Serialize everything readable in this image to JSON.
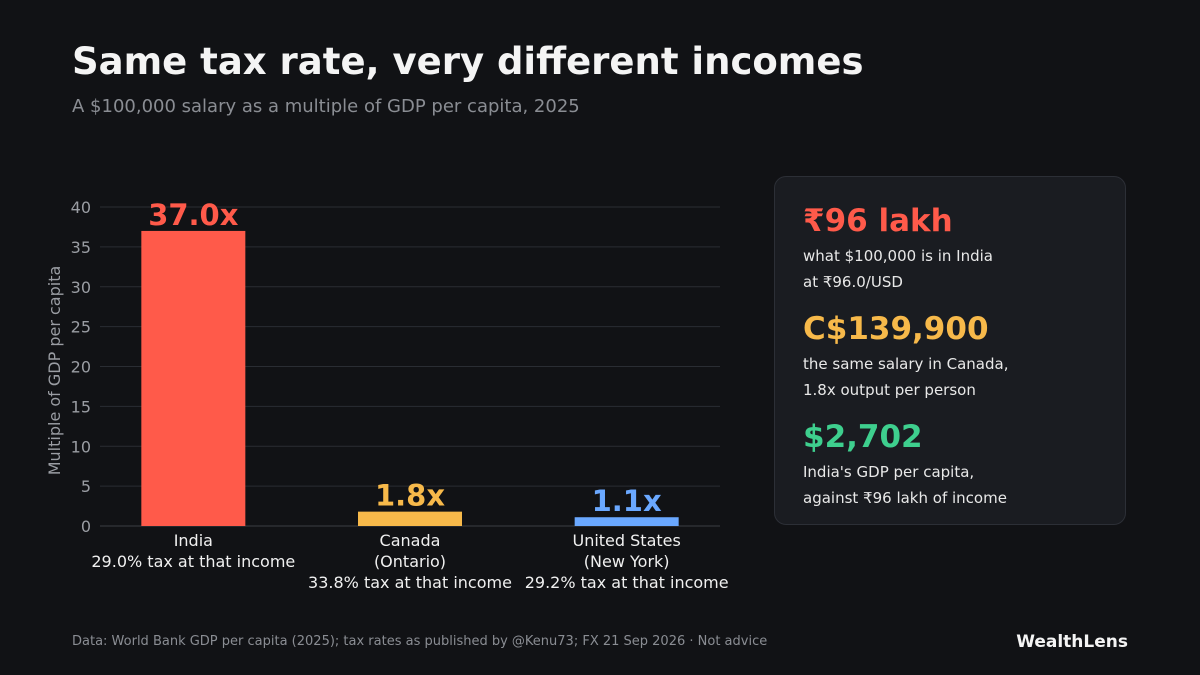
{
  "header": {
    "title": "Same tax rate, very different incomes",
    "subtitle": "A $100,000 salary as a multiple of GDP per capita, 2025"
  },
  "chart_data": {
    "type": "bar",
    "title": "Same tax rate, very different incomes",
    "subtitle": "A $100,000 salary as a multiple of GDP per capita, 2025",
    "xlabel": "",
    "ylabel": "Multiple of GDP per capita",
    "ylim": [
      0,
      40
    ],
    "yticks": [
      0,
      5,
      10,
      15,
      20,
      25,
      30,
      35,
      40
    ],
    "grid": true,
    "categories": [
      [
        "India",
        "29.0% tax at that income"
      ],
      [
        "Canada",
        "(Ontario)",
        "33.8% tax at that income"
      ],
      [
        "United States",
        "(New York)",
        "29.2% tax at that income"
      ]
    ],
    "values": [
      37.0,
      1.8,
      1.1
    ],
    "value_labels": [
      "37.0x",
      "1.8x",
      "1.1x"
    ],
    "colors": [
      "#ff5a4a",
      "#f7b94a",
      "#6aa8ff"
    ]
  },
  "panel": {
    "stats": [
      {
        "value": "₹96 lakh",
        "lines": [
          "what $100,000 is in India",
          "at ₹96.0/USD"
        ],
        "color": "#ff5a4a"
      },
      {
        "value": "C$139,900",
        "lines": [
          "the same salary in Canada,",
          "1.8x output per person"
        ],
        "color": "#f7b94a"
      },
      {
        "value": "$2,702",
        "lines": [
          "India's GDP per capita,",
          "against ₹96 lakh of income"
        ],
        "color": "#3ecf8e"
      }
    ]
  },
  "footer": {
    "source": "Data: World Bank GDP per capita (2025); tax rates as published by @Kenu73; FX 21 Sep 2026  ·  Not advice",
    "brand": "WealthLens"
  }
}
